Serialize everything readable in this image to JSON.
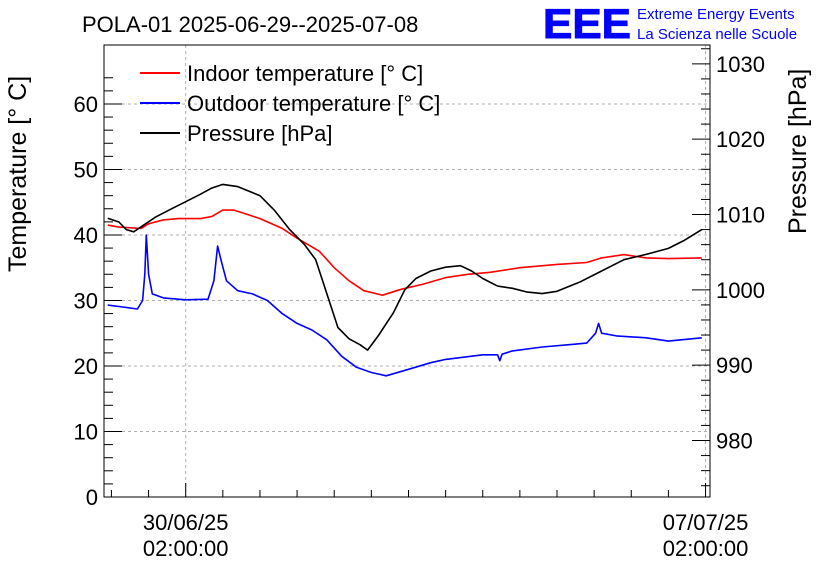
{
  "chart_data": {
    "type": "line",
    "title": "POLA-01 2025-06-29--2025-07-08",
    "logo": {
      "mark": "EEE",
      "line1": "Extreme Energy Events",
      "line2": "La Scienza nelle Scuole",
      "color": "#0000ff"
    },
    "ylabel": "Temperature [° C]",
    "y2label": "Pressure [hPa]",
    "ylim": [
      0,
      69
    ],
    "y2lim": [
      972.5,
      1032.5
    ],
    "xlim": [
      -1.1,
      7.06
    ],
    "grid": true,
    "legend_position": "top-left",
    "x_ticks": [
      {
        "x": 0,
        "date": "30/06/25",
        "time": "02:00:00"
      },
      {
        "x": 7,
        "date": "07/07/25",
        "time": "02:00:00"
      }
    ],
    "y_ticks": [
      0,
      10,
      20,
      30,
      40,
      50,
      60
    ],
    "y2_ticks": [
      980,
      990,
      1000,
      1010,
      1020,
      1030
    ],
    "x_unit": "days since 30/06/25 02:00:00",
    "series": [
      {
        "name": "Indoor temperature [° C]",
        "axis": "left",
        "color": "#ff0000",
        "points": [
          [
            -1.05,
            41.5
          ],
          [
            -0.9,
            41.2
          ],
          [
            -0.6,
            41
          ],
          [
            -0.5,
            41.7
          ],
          [
            -0.3,
            42.3
          ],
          [
            -0.1,
            42.5
          ],
          [
            0.2,
            42.5
          ],
          [
            0.35,
            42.8
          ],
          [
            0.5,
            43.8
          ],
          [
            0.65,
            43.8
          ],
          [
            1.0,
            42.5
          ],
          [
            1.3,
            41
          ],
          [
            1.5,
            39.5
          ],
          [
            1.8,
            37.5
          ],
          [
            2.0,
            35
          ],
          [
            2.2,
            33
          ],
          [
            2.4,
            31.5
          ],
          [
            2.65,
            30.8
          ],
          [
            2.9,
            31.7
          ],
          [
            3.2,
            32.5
          ],
          [
            3.5,
            33.5
          ],
          [
            3.8,
            34
          ],
          [
            4.1,
            34.3
          ],
          [
            4.5,
            35
          ],
          [
            5.0,
            35.5
          ],
          [
            5.4,
            35.8
          ],
          [
            5.6,
            36.5
          ],
          [
            5.9,
            37
          ],
          [
            6.2,
            36.5
          ],
          [
            6.5,
            36.4
          ],
          [
            6.95,
            36.5
          ]
        ]
      },
      {
        "name": "Outdoor temperature [° C]",
        "axis": "left",
        "color": "#0000ff",
        "points": [
          [
            -1.05,
            29.3
          ],
          [
            -0.85,
            29
          ],
          [
            -0.65,
            28.7
          ],
          [
            -0.58,
            30
          ],
          [
            -0.55,
            34
          ],
          [
            -0.53,
            40
          ],
          [
            -0.5,
            34
          ],
          [
            -0.45,
            31
          ],
          [
            -0.3,
            30.4
          ],
          [
            0,
            30.1
          ],
          [
            0.3,
            30.2
          ],
          [
            0.38,
            33
          ],
          [
            0.43,
            38.3
          ],
          [
            0.48,
            36
          ],
          [
            0.55,
            33
          ],
          [
            0.7,
            31.5
          ],
          [
            0.9,
            31
          ],
          [
            1.1,
            30
          ],
          [
            1.3,
            28
          ],
          [
            1.5,
            26.5
          ],
          [
            1.7,
            25.5
          ],
          [
            1.9,
            24
          ],
          [
            2.1,
            21.5
          ],
          [
            2.3,
            19.8
          ],
          [
            2.5,
            19
          ],
          [
            2.7,
            18.5
          ],
          [
            3.0,
            19.5
          ],
          [
            3.3,
            20.5
          ],
          [
            3.5,
            21
          ],
          [
            4.0,
            21.7
          ],
          [
            4.2,
            21.7
          ],
          [
            4.23,
            20.8
          ],
          [
            4.26,
            21.8
          ],
          [
            4.4,
            22.3
          ],
          [
            4.8,
            22.9
          ],
          [
            5.2,
            23.3
          ],
          [
            5.4,
            23.5
          ],
          [
            5.52,
            25
          ],
          [
            5.56,
            26.5
          ],
          [
            5.6,
            25
          ],
          [
            5.8,
            24.6
          ],
          [
            6.2,
            24.3
          ],
          [
            6.5,
            23.8
          ],
          [
            6.95,
            24.3
          ]
        ]
      },
      {
        "name": "Pressure [hPa]",
        "axis": "right",
        "color": "#000000",
        "points": [
          [
            -1.05,
            1009.5
          ],
          [
            -0.9,
            1009
          ],
          [
            -0.8,
            1008
          ],
          [
            -0.7,
            1007.7
          ],
          [
            -0.55,
            1008.7
          ],
          [
            -0.4,
            1009.7
          ],
          [
            -0.2,
            1010.7
          ],
          [
            0.0,
            1011.7
          ],
          [
            0.2,
            1012.7
          ],
          [
            0.35,
            1013.5
          ],
          [
            0.5,
            1014
          ],
          [
            0.7,
            1013.7
          ],
          [
            1.0,
            1012.5
          ],
          [
            1.2,
            1010.5
          ],
          [
            1.4,
            1008
          ],
          [
            1.6,
            1006
          ],
          [
            1.75,
            1004
          ],
          [
            1.85,
            1001
          ],
          [
            1.95,
            998
          ],
          [
            2.05,
            995
          ],
          [
            2.2,
            993.5
          ],
          [
            2.35,
            992.7
          ],
          [
            2.45,
            992
          ],
          [
            2.6,
            994
          ],
          [
            2.8,
            997
          ],
          [
            2.95,
            1000
          ],
          [
            3.1,
            1001.5
          ],
          [
            3.3,
            1002.5
          ],
          [
            3.5,
            1003
          ],
          [
            3.7,
            1003.2
          ],
          [
            3.85,
            1002.5
          ],
          [
            4.0,
            1001.5
          ],
          [
            4.2,
            1000.5
          ],
          [
            4.4,
            1000.2
          ],
          [
            4.6,
            999.7
          ],
          [
            4.8,
            999.5
          ],
          [
            5.0,
            999.8
          ],
          [
            5.3,
            1001
          ],
          [
            5.6,
            1002.5
          ],
          [
            5.9,
            1004
          ],
          [
            6.2,
            1004.7
          ],
          [
            6.5,
            1005.5
          ],
          [
            6.7,
            1006.5
          ],
          [
            6.95,
            1008
          ]
        ]
      }
    ]
  }
}
